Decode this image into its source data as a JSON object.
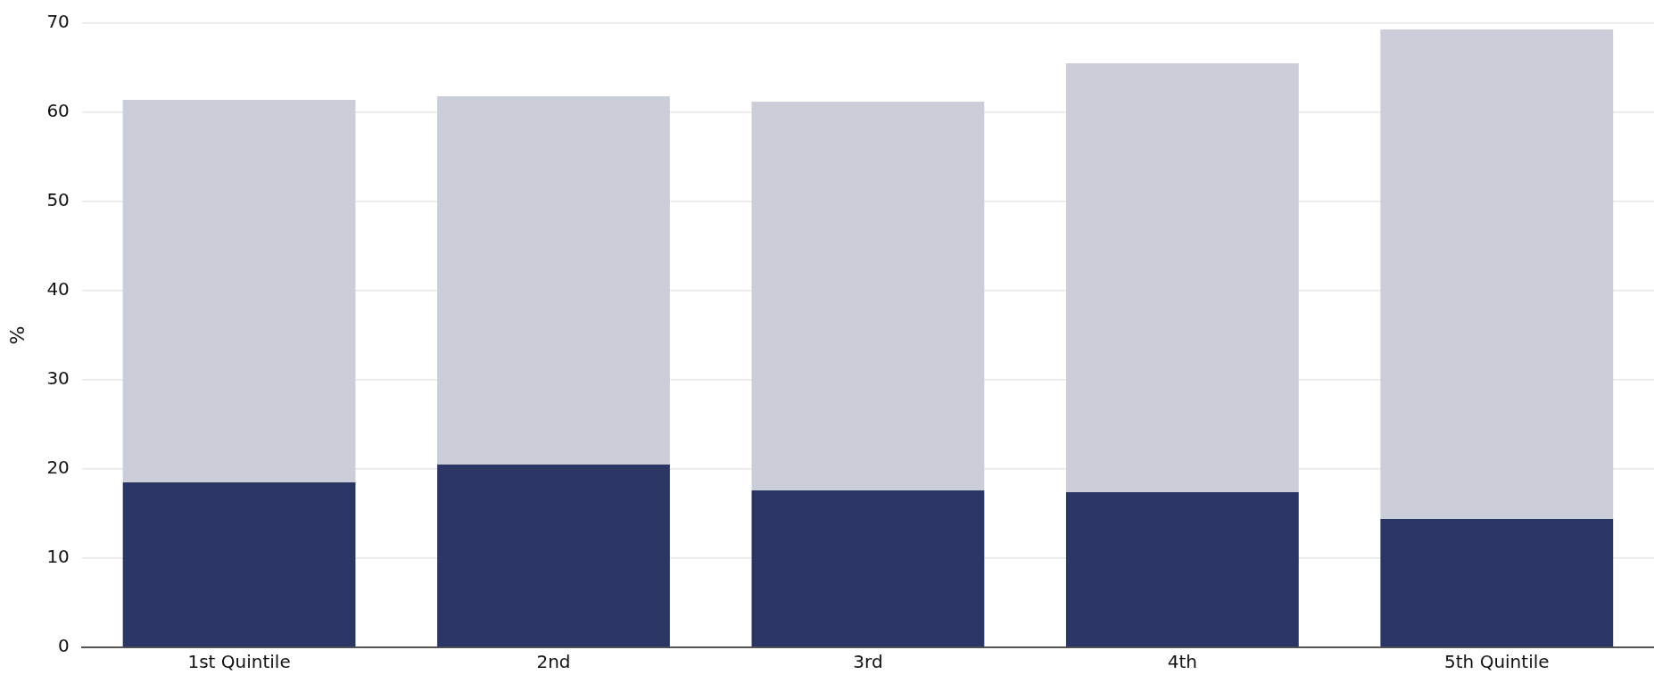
{
  "chart_data": {
    "type": "bar",
    "stacked": true,
    "ylabel": "%",
    "categories": [
      "1st Quintile",
      "2nd",
      "3rd",
      "4th",
      "5th Quintile"
    ],
    "series": [
      {
        "color": "#2b3664",
        "values": [
          18.5,
          20.5,
          17.6,
          17.4,
          14.4
        ]
      },
      {
        "color": "#cbcdd8",
        "values": [
          42.9,
          41.3,
          43.6,
          48.1,
          54.9
        ]
      }
    ],
    "ylim": [
      0,
      70
    ],
    "yticks": [
      0,
      10,
      20,
      30,
      40,
      50,
      60,
      70
    ],
    "grid": "y",
    "legend": false
  }
}
